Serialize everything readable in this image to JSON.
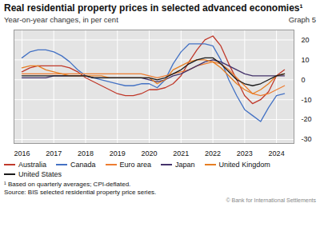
{
  "chart_data": {
    "type": "line",
    "title": "Real residential property prices in selected advanced economies¹",
    "subtitle": "Year-on-year changes, in per cent",
    "annotations": [
      "Graph 5",
      "¹ Based on quarterly averages; CPI-deflated.",
      "Source: BIS selected residential property price series.",
      "© Bank for International Settlements"
    ],
    "x": [
      2016.0,
      2016.25,
      2016.5,
      2016.75,
      2017.0,
      2017.25,
      2017.5,
      2017.75,
      2018.0,
      2018.25,
      2018.5,
      2018.75,
      2019.0,
      2019.25,
      2019.5,
      2019.75,
      2020.0,
      2020.25,
      2020.5,
      2020.75,
      2021.0,
      2021.25,
      2021.5,
      2021.75,
      2022.0,
      2022.25,
      2022.5,
      2022.75,
      2023.0,
      2023.25,
      2023.5,
      2023.75,
      2024.0,
      2024.25
    ],
    "series": [
      {
        "name": "Australia",
        "color": "#c0392b",
        "values": [
          4,
          6,
          7,
          7,
          7,
          7,
          6,
          4,
          1,
          -1,
          -3,
          -5,
          -7,
          -8,
          -8,
          -7,
          -5,
          -5,
          -4,
          -2,
          2,
          9,
          15,
          20,
          22,
          17,
          8,
          0,
          -8,
          -12,
          -10,
          -6,
          2,
          5
        ]
      },
      {
        "name": "Canada",
        "color": "#4472c4",
        "values": [
          11,
          14,
          15,
          15,
          14,
          12,
          9,
          5,
          2,
          1,
          0,
          -1,
          -2,
          -3,
          -3,
          -2,
          -2,
          -4,
          0,
          8,
          14,
          18,
          18,
          18,
          17,
          10,
          0,
          -8,
          -15,
          -18,
          -21,
          -14,
          -8,
          -7
        ]
      },
      {
        "name": "Euro area",
        "color": "#ed7d31",
        "values": [
          3,
          3,
          3,
          3,
          3,
          3,
          3,
          3,
          3,
          3,
          3,
          3,
          3,
          3,
          3,
          3,
          2,
          1,
          2,
          3,
          4,
          5,
          7,
          8,
          9,
          8,
          5,
          1,
          -3,
          -7,
          -8,
          -7,
          -5,
          -3
        ]
      },
      {
        "name": "Japan",
        "color": "#44336b",
        "values": [
          1,
          1,
          1,
          1,
          2,
          2,
          2,
          2,
          2,
          1,
          1,
          1,
          1,
          1,
          1,
          1,
          0,
          -1,
          0,
          2,
          3,
          5,
          7,
          9,
          10,
          9,
          7,
          5,
          3,
          2,
          2,
          2,
          2,
          2
        ]
      },
      {
        "name": "United Kingdom",
        "color": "#e67e22",
        "values": [
          6,
          7,
          7,
          5,
          4,
          3,
          2,
          2,
          2,
          2,
          2,
          1,
          1,
          1,
          1,
          1,
          1,
          -2,
          0,
          5,
          7,
          9,
          10,
          10,
          9,
          6,
          2,
          -2,
          -5,
          -7,
          -5,
          -2,
          2,
          3
        ]
      },
      {
        "name": "United States",
        "color": "#1a1a1a",
        "values": [
          2,
          2,
          2,
          2,
          2,
          2,
          2,
          2,
          2,
          1,
          1,
          1,
          1,
          1,
          1,
          1,
          1,
          0,
          1,
          3,
          5,
          8,
          10,
          11,
          11,
          8,
          4,
          0,
          -2,
          -3,
          -2,
          0,
          2,
          3
        ]
      }
    ],
    "xlim": [
      2015.75,
      2024.55
    ],
    "xticks": [
      2016,
      2017,
      2018,
      2019,
      2020,
      2021,
      2022,
      2023,
      2024
    ],
    "ylim": [
      -32,
      25
    ],
    "yticks": [
      -30,
      -20,
      -10,
      0,
      10,
      20
    ],
    "grid": true,
    "legend": "bottom"
  }
}
